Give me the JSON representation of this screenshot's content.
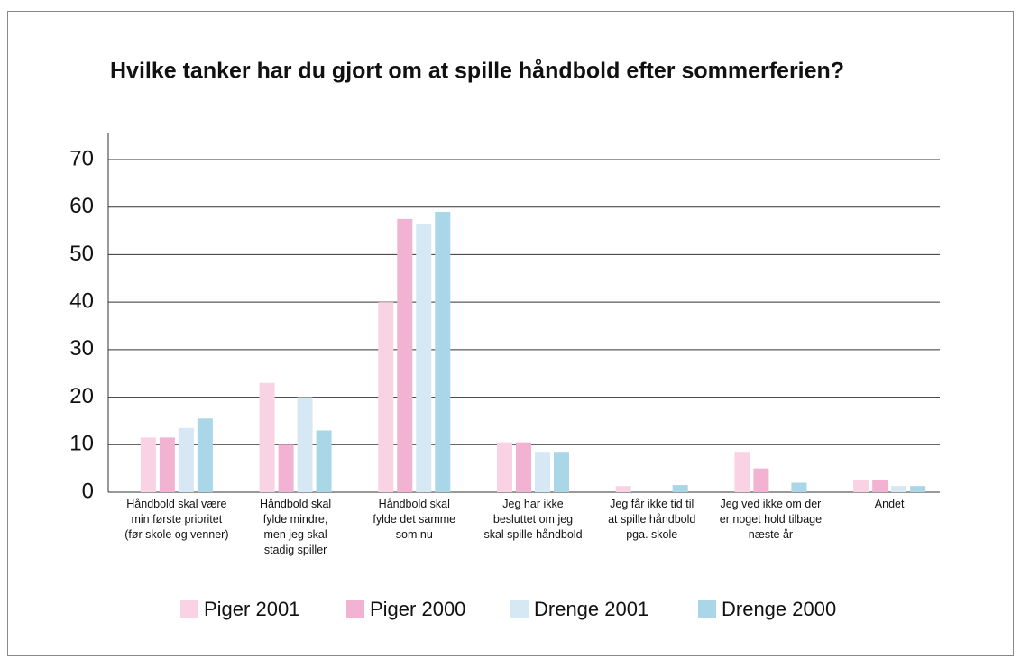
{
  "chart_data": {
    "type": "bar",
    "title": "Hvilke tanker har du gjort om at spille håndbold efter sommerferien?",
    "categories": [
      "Håndbold skal være\nmin første prioritet\n(før skole og venner)",
      "Håndbold skal\nfylde mindre,\nmen jeg skal\nstadig spiller",
      "Håndbold skal\nfylde det samme\nsom nu",
      "Jeg har ikke\nbesluttet om jeg\nskal spille håndbold",
      "Jeg får ikke tid til\nat spille håndbold\npga. skole",
      "Jeg ved ikke om der\ner noget hold tilbage\nnæste år",
      "Andet"
    ],
    "series": [
      {
        "name": "Piger 2001",
        "color": "#f9d3e4",
        "values": [
          11.5,
          23,
          40,
          10.5,
          1.3,
          8.5,
          2.6
        ]
      },
      {
        "name": "Piger 2000",
        "color": "#f2b3d3",
        "values": [
          11.5,
          10,
          57.5,
          10.5,
          0,
          5,
          2.6
        ]
      },
      {
        "name": "Drenge 2001",
        "color": "#d5e8f4",
        "values": [
          13.5,
          20,
          56.5,
          8.5,
          0,
          0,
          1.3
        ]
      },
      {
        "name": "Drenge 2000",
        "color": "#a9d7e8",
        "values": [
          15.5,
          13,
          59,
          8.5,
          1.5,
          2,
          1.3
        ]
      }
    ],
    "ylim": [
      0,
      70
    ],
    "yticks": [
      0,
      10,
      20,
      30,
      40,
      50,
      60,
      70
    ],
    "grid": true,
    "legend": "bottom"
  }
}
